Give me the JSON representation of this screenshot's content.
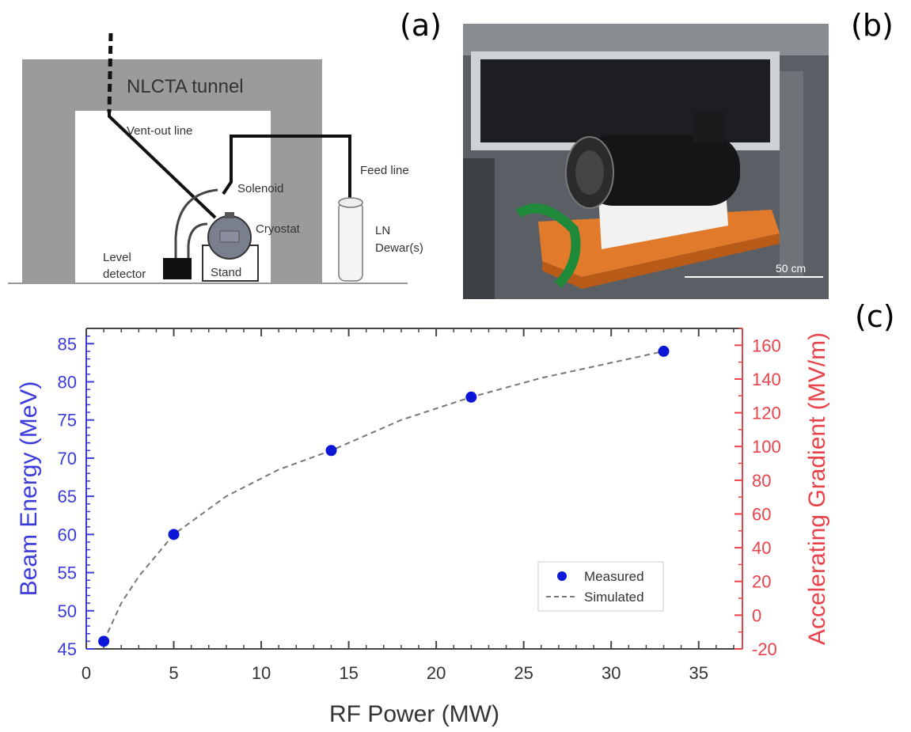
{
  "panel_labels": {
    "a": "(a)",
    "b": "(b)",
    "c": "(c)"
  },
  "diagram": {
    "tunnel_label": "NLCTA tunnel",
    "vent_label": "Vent-out line",
    "feed_label": "Feed line",
    "solenoid_label": "Solenoid",
    "cryostat_label": "Cryostat",
    "level_label_1": "Level",
    "level_label_2": "detector",
    "stand_label": "Stand",
    "ln_label_1": "LN",
    "ln_label_2": "Dewar(s)"
  },
  "photo": {
    "scale_label": "50 cm"
  },
  "chart_data": {
    "type": "scatter",
    "xlabel": "RF Power (MW)",
    "ylabel": "Beam Energy (MeV)",
    "y2label": "Accelerating Gradient (MV/m)",
    "xlim": [
      0,
      37.5
    ],
    "ylim": [
      45,
      87
    ],
    "y2lim": [
      -20,
      170
    ],
    "x_ticks": [
      "0",
      "5",
      "10",
      "15",
      "20",
      "25",
      "30",
      "35"
    ],
    "y_ticks": [
      "45",
      "50",
      "55",
      "60",
      "65",
      "70",
      "75",
      "80",
      "85"
    ],
    "y2_ticks": [
      "-20",
      "0",
      "20",
      "40",
      "60",
      "80",
      "100",
      "120",
      "140",
      "160"
    ],
    "left_axis_color": "#3b3bdb",
    "right_axis_color": "#e8434a",
    "series": [
      {
        "name": "Measured",
        "kind": "points",
        "color": "#0b16d6",
        "x": [
          1,
          5,
          14,
          22,
          33
        ],
        "y": [
          46,
          60,
          71,
          78,
          84
        ]
      },
      {
        "name": "Simulated",
        "kind": "dashed-line",
        "color": "#777777",
        "x": [
          1,
          2,
          3,
          5,
          8,
          11,
          14,
          18,
          22,
          26,
          30,
          33
        ],
        "y": [
          46,
          51,
          54.5,
          60,
          65,
          68.5,
          71,
          75,
          78,
          80.5,
          82.5,
          84
        ]
      }
    ],
    "legend_position": "lower-right"
  }
}
